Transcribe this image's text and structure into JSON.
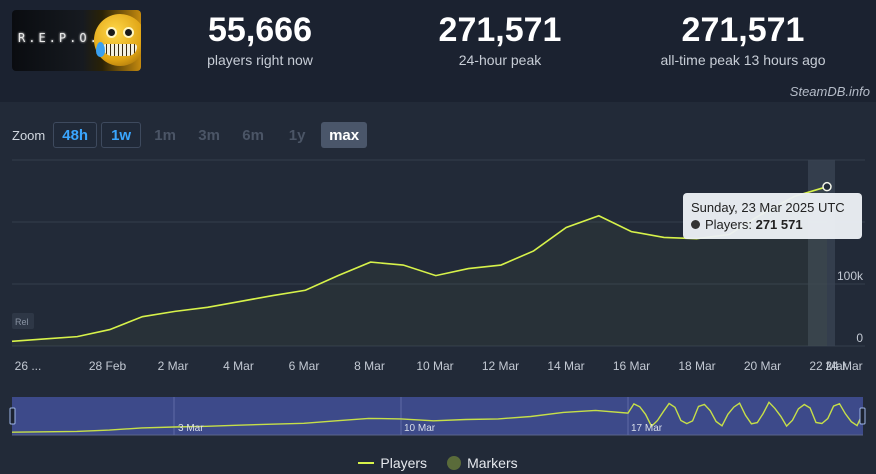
{
  "game": {
    "logo_text": "R.E.P.O."
  },
  "stats": [
    {
      "value": "55,666",
      "label": "players right now"
    },
    {
      "value": "271,571",
      "label": "24-hour peak"
    },
    {
      "value": "271,571",
      "label": "all-time peak 13 hours ago"
    }
  ],
  "watermark": "SteamDB.info",
  "zoom": {
    "label": "Zoom",
    "options": [
      {
        "label": "48h",
        "state": "link"
      },
      {
        "label": "1w",
        "state": "link"
      },
      {
        "label": "1m",
        "state": "disabled"
      },
      {
        "label": "3m",
        "state": "disabled"
      },
      {
        "label": "6m",
        "state": "disabled"
      },
      {
        "label": "1y",
        "state": "disabled"
      },
      {
        "label": "max",
        "state": "active"
      }
    ]
  },
  "tooltip": {
    "date": "Sunday, 23 Mar 2025 UTC",
    "series": "Players:",
    "value": "271 571"
  },
  "legend": {
    "players": "Players",
    "markers": "Markers"
  },
  "range_badge": "Rel",
  "colors": {
    "line": "#d7f24a",
    "navigator_bg": "#3d4a8a",
    "background": "#222a38"
  },
  "chart_data": {
    "type": "line",
    "title": "",
    "series": [
      {
        "name": "Players",
        "x": [
          "26 Feb",
          "27 Feb",
          "28 Feb",
          "1 Mar",
          "2 Mar",
          "3 Mar",
          "4 Mar",
          "5 Mar",
          "6 Mar",
          "7 Mar",
          "8 Mar",
          "9 Mar",
          "10 Mar",
          "11 Mar",
          "12 Mar",
          "13 Mar",
          "14 Mar",
          "15 Mar",
          "16 Mar",
          "17 Mar",
          "18 Mar",
          "19 Mar",
          "20 Mar",
          "21 Mar",
          "22 Mar",
          "23 Mar"
        ],
        "values": [
          8000,
          12000,
          16000,
          28000,
          50000,
          59000,
          66000,
          76000,
          86000,
          95000,
          120000,
          143000,
          138000,
          120000,
          132000,
          138000,
          162000,
          202000,
          222000,
          195000,
          185000,
          183000,
          190000,
          225000,
          255000,
          271571
        ]
      }
    ],
    "xticks": [
      "26 ...",
      "28 Feb",
      "2 Mar",
      "4 Mar",
      "6 Mar",
      "8 Mar",
      "10 Mar",
      "12 Mar",
      "14 Mar",
      "16 Mar",
      "18 Mar",
      "20 Mar",
      "22 Mar",
      "24 Mar"
    ],
    "yticks": [
      "0",
      "100k"
    ],
    "ylim": [
      0,
      300000
    ],
    "navigator_labels": [
      "3 Mar",
      "10 Mar",
      "17 Mar"
    ],
    "grid": true
  }
}
